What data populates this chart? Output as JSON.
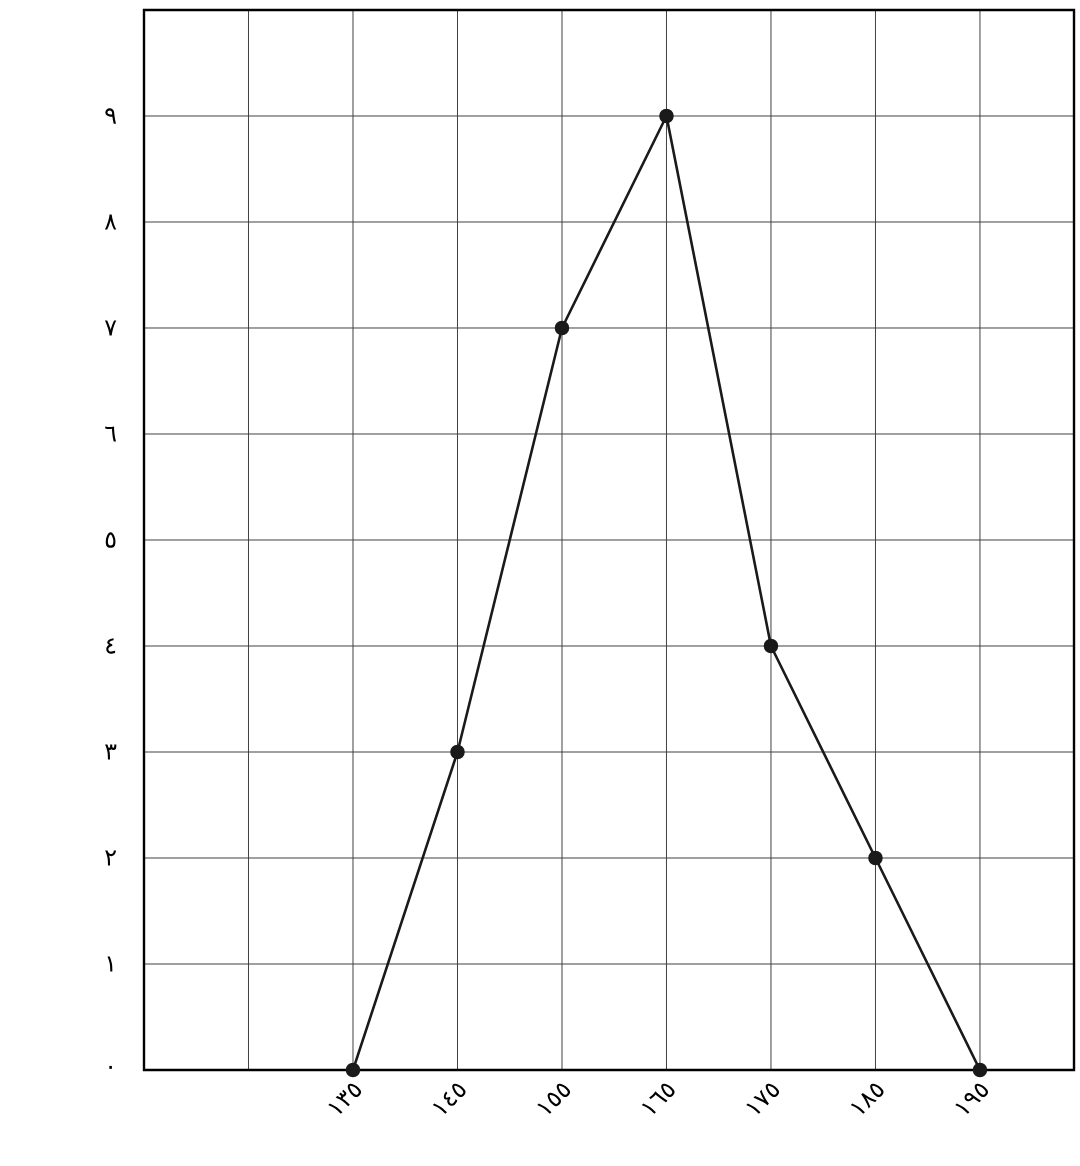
{
  "chart_data": {
    "type": "line",
    "x": [
      135,
      145,
      155,
      165,
      175,
      185,
      195
    ],
    "values": [
      0,
      3,
      7,
      9,
      4,
      2,
      0
    ],
    "color": "#1a1a1a",
    "xlim": [
      115,
      204
    ],
    "xticks": [
      {
        "value": 125,
        "label": null
      },
      {
        "value": 135,
        "label": "١٣٥"
      },
      {
        "value": 145,
        "label": "١٤٥"
      },
      {
        "value": 155,
        "label": "١٥٥"
      },
      {
        "value": 165,
        "label": "١٦٥"
      },
      {
        "value": 175,
        "label": "١٧٥"
      },
      {
        "value": 185,
        "label": "١٨٥"
      },
      {
        "value": 195,
        "label": "١٩٥"
      }
    ],
    "ylim": [
      0,
      10
    ],
    "yticks": [
      {
        "value": 0,
        "label": "٠"
      },
      {
        "value": 1,
        "label": "١"
      },
      {
        "value": 2,
        "label": "٢"
      },
      {
        "value": 3,
        "label": "٣"
      },
      {
        "value": 4,
        "label": "٤"
      },
      {
        "value": 5,
        "label": "٥"
      },
      {
        "value": 6,
        "label": "٦"
      },
      {
        "value": 7,
        "label": "٧"
      },
      {
        "value": 8,
        "label": "٨"
      },
      {
        "value": 9,
        "label": "٩"
      }
    ],
    "grid": true,
    "marker": "circle",
    "line_style": "solid"
  }
}
